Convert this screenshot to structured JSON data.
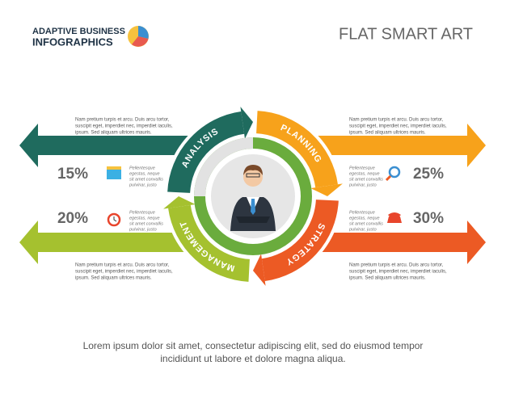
{
  "header": {
    "brand_line1": "ADAPTIVE BUSINESS",
    "brand_line2": "INFOGRAPHICS",
    "title": "FLAT SMART ART"
  },
  "stages": [
    {
      "label": "ANALYSIS",
      "percent": "15%",
      "description": [
        "Nam pretium turpis et arcu. Duis arcu tortor,",
        "suscipit eget, imperdiet nec, imperdiet iaculis,",
        "ipsum. Sed aliquam ultrices mauris."
      ],
      "note": [
        "Pellentesque",
        "egestas, neque",
        "sit amet convallis",
        "pulvinar, justo"
      ]
    },
    {
      "label": "PLANNING",
      "percent": "25%",
      "description": [
        "Nam pretium turpis et arcu. Duis arcu tortor,",
        "suscipit eget, imperdiet nec, imperdiet iaculis,",
        "ipsum. Sed aliquam ultrices mauris."
      ],
      "note": [
        "Pellentesque",
        "egestas, neque",
        "sit amet convallis",
        "pulvinar, justo"
      ]
    },
    {
      "label": "STRATEGY",
      "percent": "30%",
      "description": [
        "Nam pretium turpis et arcu. Duis arcu tortor,",
        "suscipit eget, imperdiet nec, imperdiet iaculis,",
        "ipsum. Sed aliquam ultrices mauris."
      ],
      "note": [
        "Pellentesque",
        "egestas, neque",
        "sit amet convallis",
        "pulvinar, justo"
      ]
    },
    {
      "label": "MANAGEMENT",
      "percent": "20%",
      "description": [
        "Nam pretium turpis et arcu. Duis arcu tortor,",
        "suscipit eget, imperdiet nec, imperdiet iaculis,",
        "ipsum. Sed aliquam ultrices mauris."
      ],
      "note": [
        "Pellentesque",
        "egestas, neque",
        "sit amet convallis",
        "pulvinar, justo"
      ]
    }
  ],
  "footer": {
    "lines": [
      "Lorem ipsum dolor sit amet, consectetur adipiscing elit, sed do eiusmod tempor",
      "incididunt ut labore et dolore magna aliqua."
    ]
  }
}
